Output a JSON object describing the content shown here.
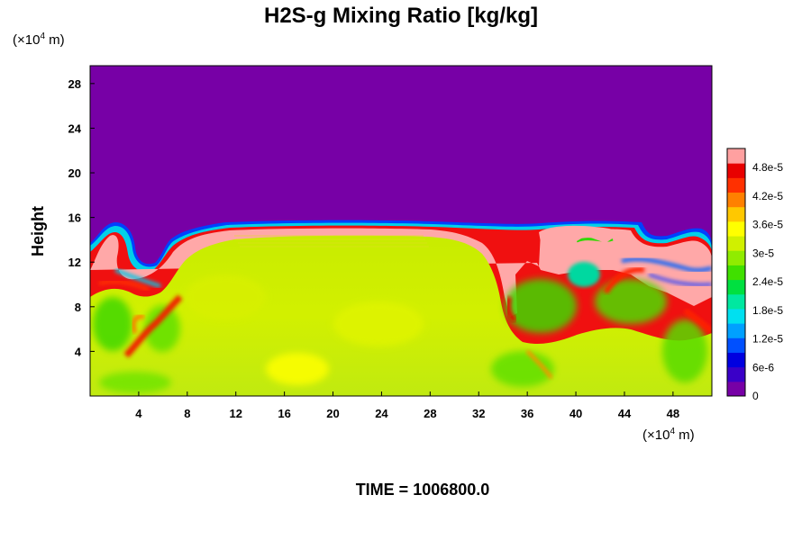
{
  "chart_data": {
    "type": "heatmap",
    "title": "H2S-g Mixing Ratio [kg/kg]",
    "ylabel": "Height",
    "xlabel": "",
    "x_unit": {
      "pre": "(×10",
      "exp": "4",
      "post": " m)"
    },
    "y_unit": {
      "pre": "(×10",
      "exp": "4",
      "post": " m)"
    },
    "x_ticks": [
      "4",
      "8",
      "12",
      "16",
      "20",
      "24",
      "28",
      "32",
      "36",
      "40",
      "44",
      "48"
    ],
    "x_tick_values": [
      4,
      8,
      12,
      16,
      20,
      24,
      28,
      32,
      36,
      40,
      44,
      48
    ],
    "y_ticks": [
      "4",
      "8",
      "12",
      "16",
      "20",
      "24",
      "28"
    ],
    "y_tick_values": [
      4,
      8,
      12,
      16,
      20,
      24,
      28
    ],
    "xlim": [
      0,
      51.2
    ],
    "ylim": [
      0,
      29.6
    ],
    "colorbar": {
      "labels": [
        "0",
        "6e-6",
        "1.2e-5",
        "1.8e-5",
        "2.4e-5",
        "3e-5",
        "3.6e-5",
        "4.2e-5",
        "4.8e-5"
      ],
      "values": [
        0,
        6e-06,
        1.2e-05,
        1.8e-05,
        2.4e-05,
        3e-05,
        3.6e-05,
        4.2e-05,
        4.8e-05
      ],
      "range": [
        0,
        5.2e-05
      ],
      "colors": [
        "#7700a6",
        "#3a00c8",
        "#0000e0",
        "#0050ff",
        "#00a0ff",
        "#00e0f0",
        "#00e8a0",
        "#00e040",
        "#40e000",
        "#90ec00",
        "#d0f000",
        "#ffff00",
        "#ffc800",
        "#ff8000",
        "#ff3000",
        "#e80000",
        "#ffa0a0"
      ]
    },
    "field_description": {
      "background_value": 0,
      "top_of_plume_height": 15.5,
      "dominant_value_in_plume": 3.3e-05,
      "max_edge_value": 5.2e-05
    },
    "time_label": "TIME = 1006800.0"
  }
}
